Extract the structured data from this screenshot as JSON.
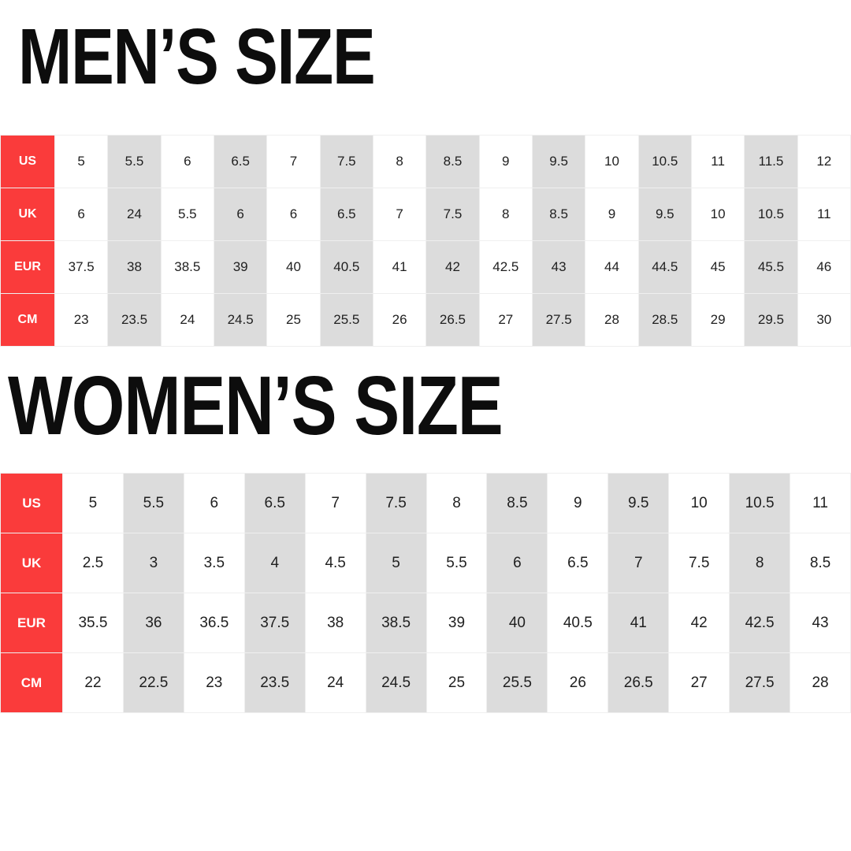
{
  "colors": {
    "header_red": "#fa3b3b",
    "stripe_gray": "#dcdcdc",
    "cell_white": "#ffffff",
    "border_gray": "#efefef",
    "header_text": "#ffffff",
    "text_dark": "#1f1f1f",
    "title_color": "#0d0d0d"
  },
  "mens": {
    "title": "MEN’S SIZE",
    "rows": [
      {
        "label": "US",
        "values": [
          "5",
          "5.5",
          "6",
          "6.5",
          "7",
          "7.5",
          "8",
          "8.5",
          "9",
          "9.5",
          "10",
          "10.5",
          "11",
          "11.5",
          "12"
        ]
      },
      {
        "label": "UK",
        "values": [
          "6",
          "24",
          "5.5",
          "6",
          "6",
          "6.5",
          "7",
          "7.5",
          "8",
          "8.5",
          "9",
          "9.5",
          "10",
          "10.5",
          "11"
        ]
      },
      {
        "label": "EUR",
        "values": [
          "37.5",
          "38",
          "38.5",
          "39",
          "40",
          "40.5",
          "41",
          "42",
          "42.5",
          "43",
          "44",
          "44.5",
          "45",
          "45.5",
          "46"
        ]
      },
      {
        "label": "CM",
        "values": [
          "23",
          "23.5",
          "24",
          "24.5",
          "25",
          "25.5",
          "26",
          "26.5",
          "27",
          "27.5",
          "28",
          "28.5",
          "29",
          "29.5",
          "30"
        ]
      }
    ]
  },
  "womens": {
    "title": "WOMEN’S SIZE",
    "rows": [
      {
        "label": "US",
        "values": [
          "5",
          "5.5",
          "6",
          "6.5",
          "7",
          "7.5",
          "8",
          "8.5",
          "9",
          "9.5",
          "10",
          "10.5",
          "11"
        ]
      },
      {
        "label": "UK",
        "values": [
          "2.5",
          "3",
          "3.5",
          "4",
          "4.5",
          "5",
          "5.5",
          "6",
          "6.5",
          "7",
          "7.5",
          "8",
          "8.5"
        ]
      },
      {
        "label": "EUR",
        "values": [
          "35.5",
          "36",
          "36.5",
          "37.5",
          "38",
          "38.5",
          "39",
          "40",
          "40.5",
          "41",
          "42",
          "42.5",
          "43"
        ]
      },
      {
        "label": "CM",
        "values": [
          "22",
          "22.5",
          "23",
          "23.5",
          "24",
          "24.5",
          "25",
          "25.5",
          "26",
          "26.5",
          "27",
          "27.5",
          "28"
        ]
      }
    ]
  }
}
